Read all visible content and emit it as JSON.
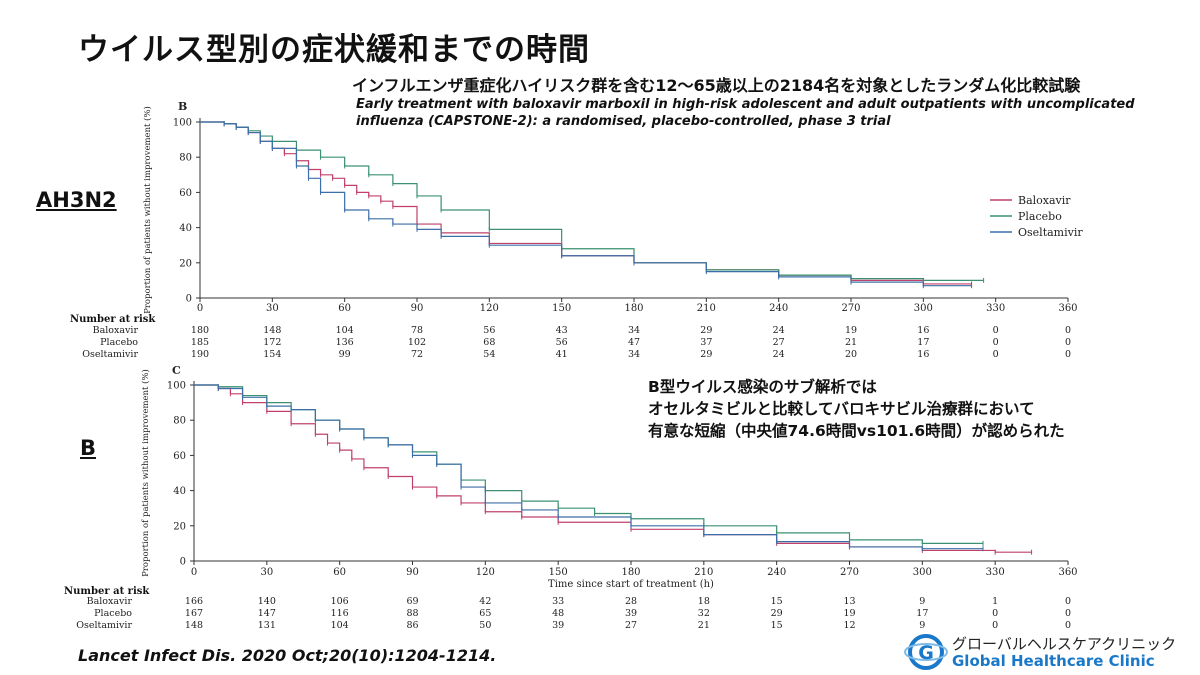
{
  "header": {
    "title": "ウイルス型別の症状緩和までの時間",
    "subtitle_jp": "インフルエンザ重症化ハイリスク群を含む12〜65歳以上の2184名を対象としたランダム化比較試験",
    "study_title": "Early treatment with baloxavir marboxil in high-risk adolescent and adult outpatients with uncomplicated influenza (CAPSTONE-2): a randomised, placebo-controlled, phase 3 trial"
  },
  "section_labels": {
    "ah3n2": "AH3N2",
    "b": "B"
  },
  "finding": {
    "line1": "B型ウイルス感染のサブ解析では",
    "line2": "オセルタミビルと比較してバロキサビル治療群において",
    "line3": "有意な短縮（中央値74.6時間vs101.6時間）が認められた"
  },
  "citation": "Lancet Infect Dis. 2020 Oct;20(10):1204-1214.",
  "logo": {
    "name_jp": "グローバルヘルスケアクリニック",
    "name_en": "Global Healthcare Clinic",
    "mark": "G"
  },
  "colors": {
    "baloxavir": "#c0406a",
    "placebo": "#3a9070",
    "oseltamivir": "#3c6ea8",
    "axis": "#333333",
    "logo": "#1a78c8"
  },
  "chart_data": [
    {
      "type": "line",
      "panel_label": "B",
      "ylabel": "Proportion of patients without improvement (%)",
      "xlabel": "",
      "xlim": [
        0,
        360
      ],
      "ylim": [
        0,
        100
      ],
      "xticks": [
        0,
        30,
        60,
        90,
        120,
        150,
        180,
        210,
        240,
        270,
        300,
        330,
        360
      ],
      "yticks": [
        0,
        20,
        40,
        60,
        80,
        100
      ],
      "legend": [
        "Baloxavir",
        "Placebo",
        "Oseltamivir"
      ],
      "series": [
        {
          "name": "Baloxavir",
          "color_key": "baloxavir",
          "x": [
            0,
            10,
            15,
            20,
            25,
            30,
            35,
            40,
            45,
            50,
            55,
            60,
            65,
            70,
            75,
            80,
            90,
            100,
            120,
            150,
            180,
            210,
            240,
            270,
            300,
            320
          ],
          "y": [
            100,
            99,
            97,
            94,
            89,
            85,
            82,
            78,
            73,
            70,
            68,
            64,
            60,
            58,
            55,
            52,
            42,
            37,
            31,
            24,
            20,
            16,
            13,
            10,
            8,
            8
          ]
        },
        {
          "name": "Placebo",
          "color_key": "placebo",
          "x": [
            0,
            10,
            15,
            20,
            25,
            30,
            40,
            50,
            60,
            70,
            80,
            90,
            100,
            120,
            150,
            180,
            210,
            240,
            270,
            300,
            325
          ],
          "y": [
            100,
            99,
            97,
            95,
            92,
            89,
            84,
            80,
            75,
            70,
            65,
            58,
            50,
            39,
            28,
            20,
            16,
            13,
            11,
            10,
            10
          ]
        },
        {
          "name": "Oseltamivir",
          "color_key": "oseltamivir",
          "x": [
            0,
            10,
            15,
            20,
            25,
            30,
            40,
            45,
            50,
            60,
            70,
            80,
            90,
            100,
            120,
            150,
            180,
            210,
            240,
            270,
            300,
            320
          ],
          "y": [
            100,
            99,
            97,
            94,
            89,
            85,
            75,
            68,
            60,
            50,
            45,
            42,
            39,
            35,
            30,
            24,
            20,
            15,
            12,
            9,
            7,
            7
          ]
        }
      ],
      "risk_table": {
        "title": "Number at risk",
        "rows": [
          {
            "name": "Baloxavir",
            "values": [
              "180",
              "148",
              "104",
              "78",
              "56",
              "43",
              "34",
              "29",
              "24",
              "19",
              "16",
              "0",
              "0"
            ]
          },
          {
            "name": "Placebo",
            "values": [
              "185",
              "172",
              "136",
              "102",
              "68",
              "56",
              "47",
              "37",
              "27",
              "21",
              "17",
              "0",
              "0"
            ]
          },
          {
            "name": "Oseltamivir",
            "values": [
              "190",
              "154",
              "99",
              "72",
              "54",
              "41",
              "34",
              "29",
              "24",
              "20",
              "16",
              "0",
              "0"
            ]
          }
        ]
      }
    },
    {
      "type": "line",
      "panel_label": "C",
      "ylabel": "Proportion of patients without improvement (%)",
      "xlabel": "Time since start of treatment (h)",
      "xlim": [
        0,
        360
      ],
      "ylim": [
        0,
        100
      ],
      "xticks": [
        0,
        30,
        60,
        90,
        120,
        150,
        180,
        210,
        240,
        270,
        300,
        330,
        360
      ],
      "yticks": [
        0,
        20,
        40,
        60,
        80,
        100
      ],
      "legend": [],
      "series": [
        {
          "name": "Baloxavir",
          "color_key": "baloxavir",
          "x": [
            0,
            10,
            15,
            20,
            30,
            40,
            50,
            55,
            60,
            65,
            70,
            80,
            90,
            100,
            110,
            120,
            135,
            150,
            180,
            210,
            240,
            270,
            300,
            330,
            345
          ],
          "y": [
            100,
            98,
            95,
            90,
            85,
            78,
            72,
            67,
            63,
            58,
            53,
            48,
            42,
            37,
            33,
            28,
            25,
            22,
            18,
            15,
            10,
            8,
            6,
            5,
            5
          ]
        },
        {
          "name": "Placebo",
          "color_key": "placebo",
          "x": [
            0,
            10,
            20,
            30,
            40,
            50,
            60,
            70,
            80,
            90,
            100,
            110,
            120,
            135,
            150,
            165,
            180,
            210,
            240,
            270,
            300,
            325
          ],
          "y": [
            100,
            99,
            94,
            90,
            86,
            80,
            75,
            70,
            66,
            62,
            55,
            46,
            40,
            34,
            30,
            27,
            24,
            20,
            16,
            12,
            10,
            10
          ]
        },
        {
          "name": "Oseltamivir",
          "color_key": "oseltamivir",
          "x": [
            0,
            10,
            20,
            30,
            40,
            50,
            60,
            70,
            80,
            90,
            100,
            110,
            120,
            135,
            150,
            180,
            210,
            240,
            270,
            300,
            325
          ],
          "y": [
            100,
            98,
            93,
            88,
            86,
            80,
            75,
            70,
            66,
            60,
            55,
            42,
            33,
            29,
            25,
            20,
            15,
            11,
            8,
            7,
            7
          ]
        }
      ],
      "risk_table": {
        "title": "Number at risk",
        "rows": [
          {
            "name": "Baloxavir",
            "values": [
              "166",
              "140",
              "106",
              "69",
              "42",
              "33",
              "28",
              "18",
              "15",
              "13",
              "9",
              "1",
              "0"
            ]
          },
          {
            "name": "Placebo",
            "values": [
              "167",
              "147",
              "116",
              "88",
              "65",
              "48",
              "39",
              "32",
              "29",
              "19",
              "17",
              "0",
              "0"
            ]
          },
          {
            "name": "Oseltamivir",
            "values": [
              "148",
              "131",
              "104",
              "86",
              "50",
              "39",
              "27",
              "21",
              "15",
              "12",
              "9",
              "0",
              "0"
            ]
          }
        ]
      }
    }
  ]
}
